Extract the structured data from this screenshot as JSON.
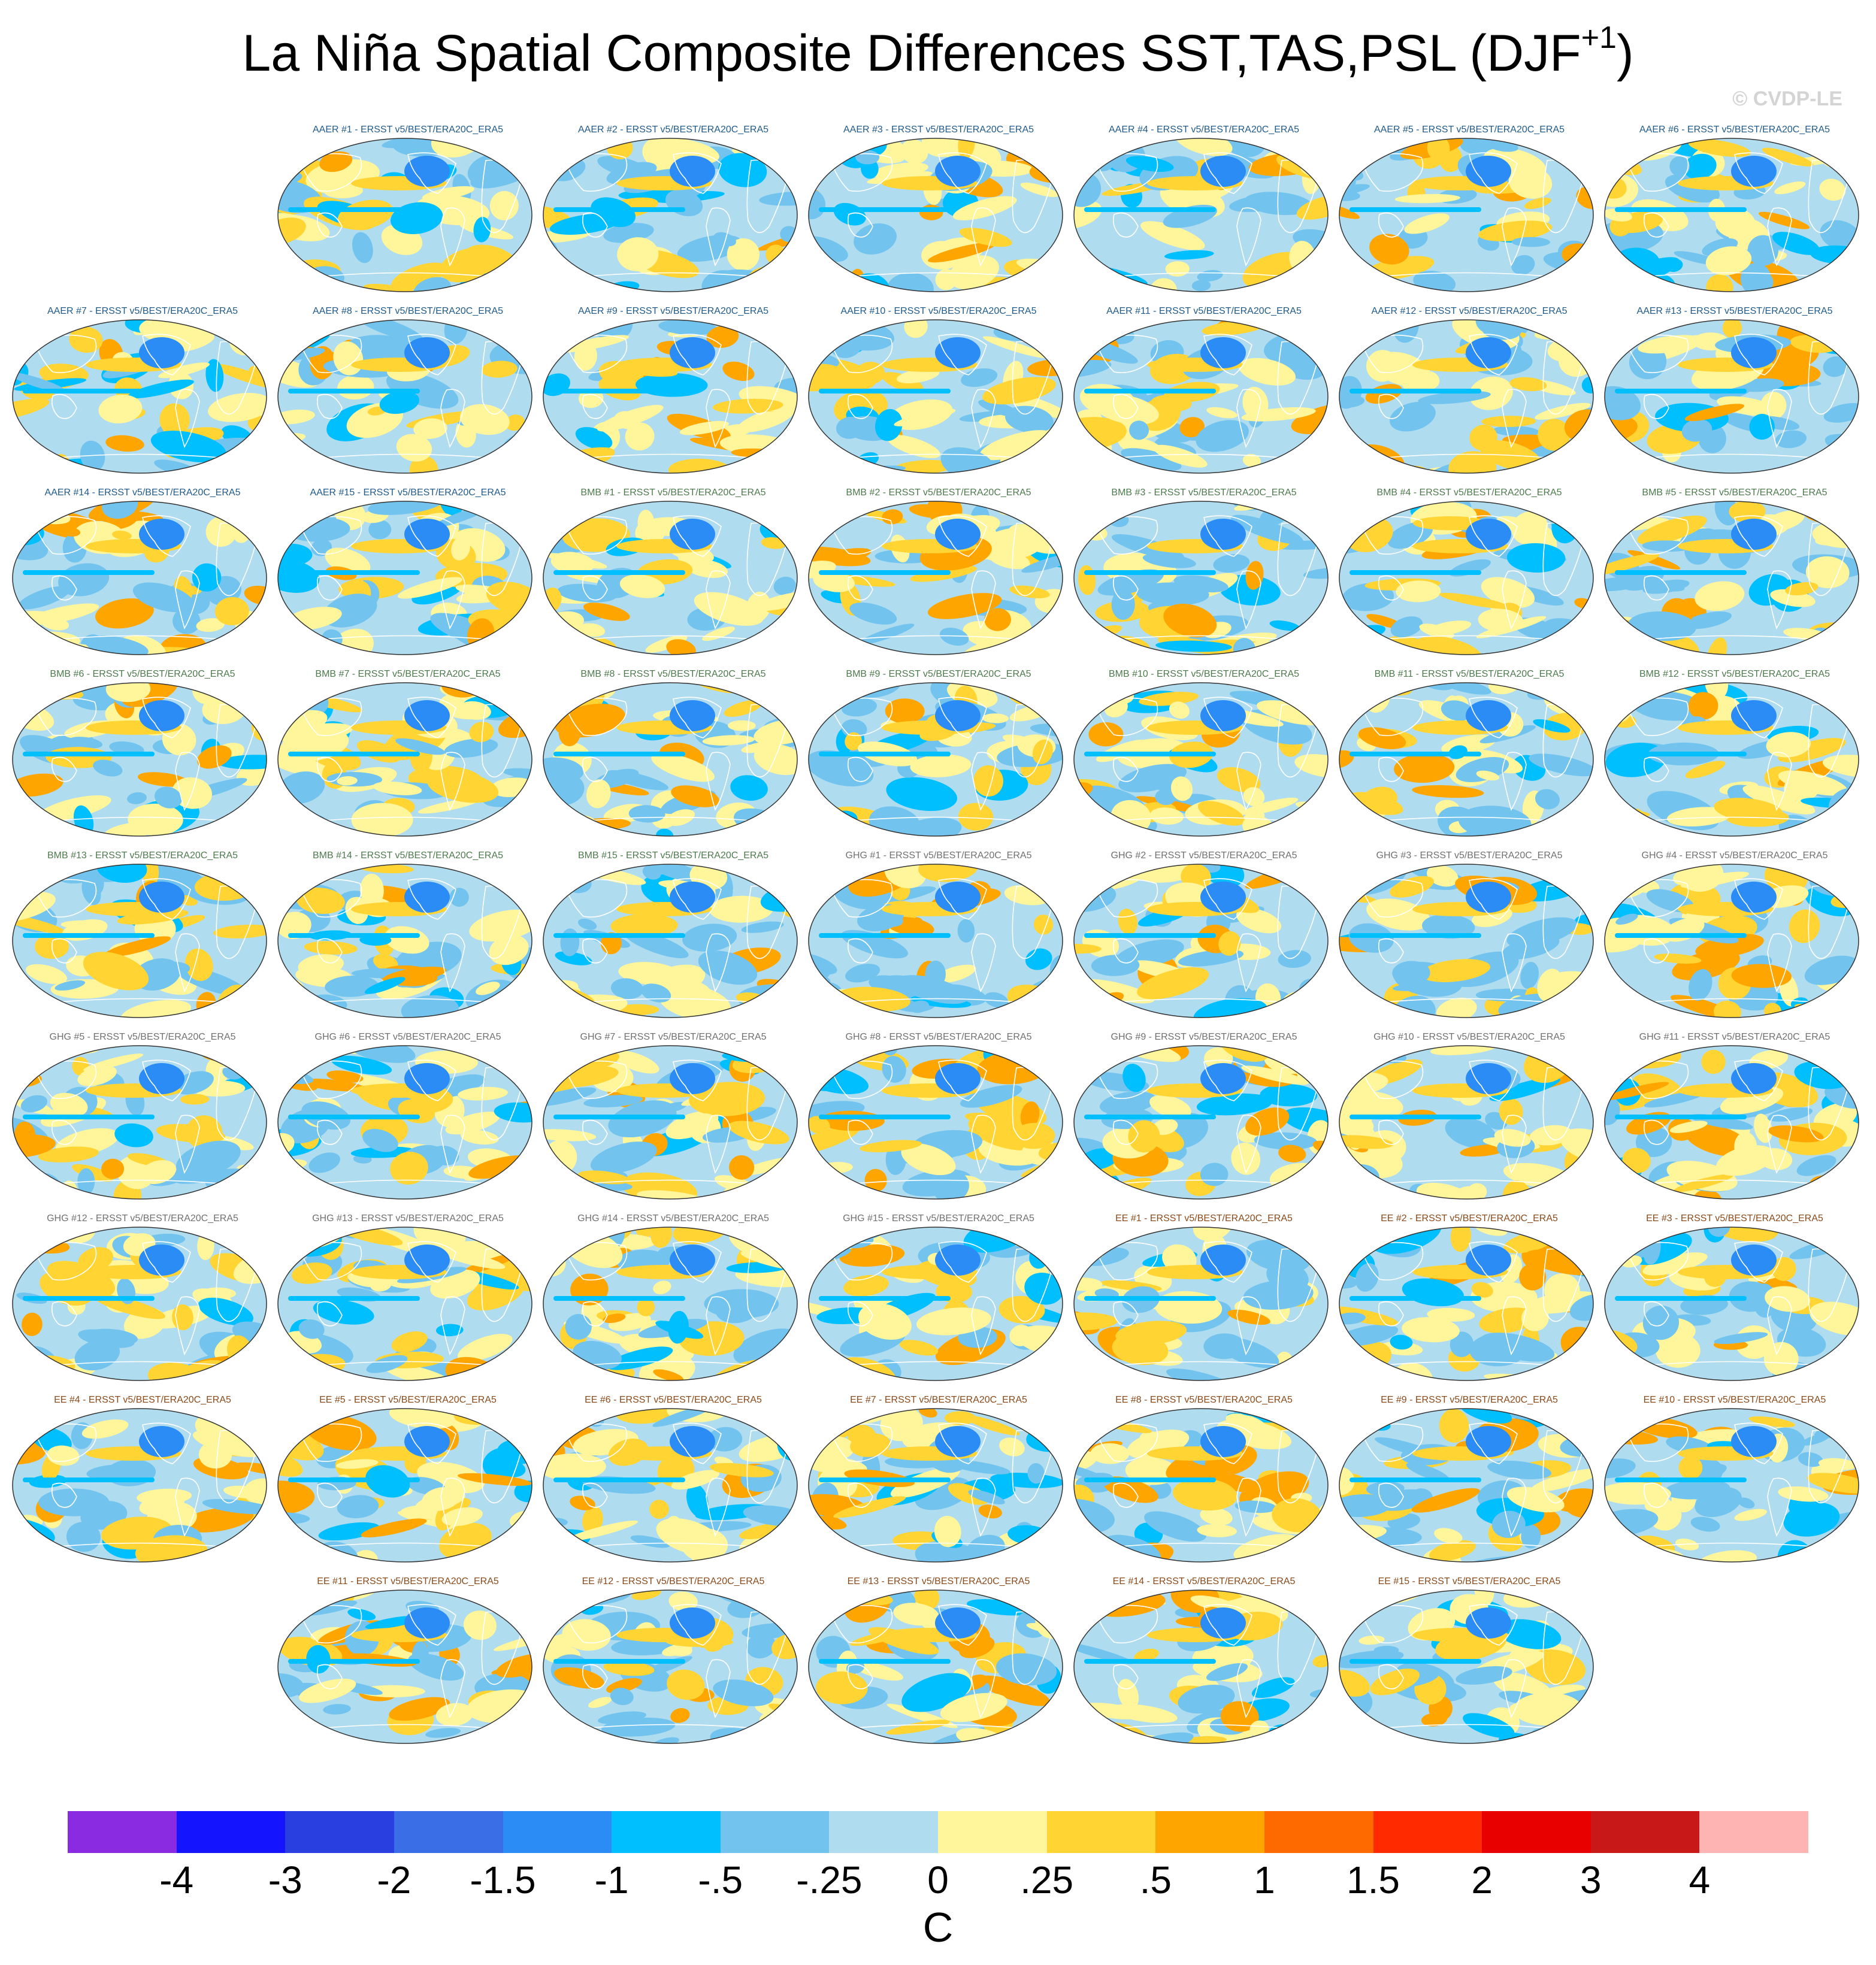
{
  "title": {
    "main": "La Niña Spatial Composite Differences SST,TAS,PSL (DJF",
    "superscript": "+1",
    "close": ")"
  },
  "watermark": "© CVDP-LE",
  "panels": [
    {
      "label": "AAER #1 - ERSST v5/BEST/ERA20C_ERA5",
      "group": "AAER"
    },
    {
      "label": "AAER #2 - ERSST v5/BEST/ERA20C_ERA5",
      "group": "AAER"
    },
    {
      "label": "AAER #3 - ERSST v5/BEST/ERA20C_ERA5",
      "group": "AAER"
    },
    {
      "label": "AAER #4 - ERSST v5/BEST/ERA20C_ERA5",
      "group": "AAER"
    },
    {
      "label": "AAER #5 - ERSST v5/BEST/ERA20C_ERA5",
      "group": "AAER"
    },
    {
      "label": "AAER #6 - ERSST v5/BEST/ERA20C_ERA5",
      "group": "AAER"
    },
    {
      "label": "AAER #7 - ERSST v5/BEST/ERA20C_ERA5",
      "group": "AAER"
    },
    {
      "label": "AAER #8 - ERSST v5/BEST/ERA20C_ERA5",
      "group": "AAER"
    },
    {
      "label": "AAER #9 - ERSST v5/BEST/ERA20C_ERA5",
      "group": "AAER"
    },
    {
      "label": "AAER #10 - ERSST v5/BEST/ERA20C_ERA5",
      "group": "AAER"
    },
    {
      "label": "AAER #11 - ERSST v5/BEST/ERA20C_ERA5",
      "group": "AAER"
    },
    {
      "label": "AAER #12 - ERSST v5/BEST/ERA20C_ERA5",
      "group": "AAER"
    },
    {
      "label": "AAER #13 - ERSST v5/BEST/ERA20C_ERA5",
      "group": "AAER"
    },
    {
      "label": "AAER #14 - ERSST v5/BEST/ERA20C_ERA5",
      "group": "AAER"
    },
    {
      "label": "AAER #15 - ERSST v5/BEST/ERA20C_ERA5",
      "group": "AAER"
    },
    {
      "label": "BMB #1 - ERSST v5/BEST/ERA20C_ERA5",
      "group": "BMB"
    },
    {
      "label": "BMB #2 - ERSST v5/BEST/ERA20C_ERA5",
      "group": "BMB"
    },
    {
      "label": "BMB #3 - ERSST v5/BEST/ERA20C_ERA5",
      "group": "BMB"
    },
    {
      "label": "BMB #4 - ERSST v5/BEST/ERA20C_ERA5",
      "group": "BMB"
    },
    {
      "label": "BMB #5 - ERSST v5/BEST/ERA20C_ERA5",
      "group": "BMB"
    },
    {
      "label": "BMB #6 - ERSST v5/BEST/ERA20C_ERA5",
      "group": "BMB"
    },
    {
      "label": "BMB #7 - ERSST v5/BEST/ERA20C_ERA5",
      "group": "BMB"
    },
    {
      "label": "BMB #8 - ERSST v5/BEST/ERA20C_ERA5",
      "group": "BMB"
    },
    {
      "label": "BMB #9 - ERSST v5/BEST/ERA20C_ERA5",
      "group": "BMB"
    },
    {
      "label": "BMB #10 - ERSST v5/BEST/ERA20C_ERA5",
      "group": "BMB"
    },
    {
      "label": "BMB #11 - ERSST v5/BEST/ERA20C_ERA5",
      "group": "BMB"
    },
    {
      "label": "BMB #12 - ERSST v5/BEST/ERA20C_ERA5",
      "group": "BMB"
    },
    {
      "label": "BMB #13 - ERSST v5/BEST/ERA20C_ERA5",
      "group": "BMB"
    },
    {
      "label": "BMB #14 - ERSST v5/BEST/ERA20C_ERA5",
      "group": "BMB"
    },
    {
      "label": "BMB #15 - ERSST v5/BEST/ERA20C_ERA5",
      "group": "BMB"
    },
    {
      "label": "GHG #1 - ERSST v5/BEST/ERA20C_ERA5",
      "group": "GHG"
    },
    {
      "label": "GHG #2 - ERSST v5/BEST/ERA20C_ERA5",
      "group": "GHG"
    },
    {
      "label": "GHG #3 - ERSST v5/BEST/ERA20C_ERA5",
      "group": "GHG"
    },
    {
      "label": "GHG #4 - ERSST v5/BEST/ERA20C_ERA5",
      "group": "GHG"
    },
    {
      "label": "GHG #5 - ERSST v5/BEST/ERA20C_ERA5",
      "group": "GHG"
    },
    {
      "label": "GHG #6 - ERSST v5/BEST/ERA20C_ERA5",
      "group": "GHG"
    },
    {
      "label": "GHG #7 - ERSST v5/BEST/ERA20C_ERA5",
      "group": "GHG"
    },
    {
      "label": "GHG #8 - ERSST v5/BEST/ERA20C_ERA5",
      "group": "GHG"
    },
    {
      "label": "GHG #9 - ERSST v5/BEST/ERA20C_ERA5",
      "group": "GHG"
    },
    {
      "label": "GHG #10 - ERSST v5/BEST/ERA20C_ERA5",
      "group": "GHG"
    },
    {
      "label": "GHG #11 - ERSST v5/BEST/ERA20C_ERA5",
      "group": "GHG"
    },
    {
      "label": "GHG #12 - ERSST v5/BEST/ERA20C_ERA5",
      "group": "GHG"
    },
    {
      "label": "GHG #13 - ERSST v5/BEST/ERA20C_ERA5",
      "group": "GHG"
    },
    {
      "label": "GHG #14 - ERSST v5/BEST/ERA20C_ERA5",
      "group": "GHG"
    },
    {
      "label": "GHG #15 - ERSST v5/BEST/ERA20C_ERA5",
      "group": "GHG"
    },
    {
      "label": "EE #1 - ERSST v5/BEST/ERA20C_ERA5",
      "group": "EE"
    },
    {
      "label": "EE #2 - ERSST v5/BEST/ERA20C_ERA5",
      "group": "EE"
    },
    {
      "label": "EE #3 - ERSST v5/BEST/ERA20C_ERA5",
      "group": "EE"
    },
    {
      "label": "EE #4 - ERSST v5/BEST/ERA20C_ERA5",
      "group": "EE"
    },
    {
      "label": "EE #5 - ERSST v5/BEST/ERA20C_ERA5",
      "group": "EE"
    },
    {
      "label": "EE #6 - ERSST v5/BEST/ERA20C_ERA5",
      "group": "EE"
    },
    {
      "label": "EE #7 - ERSST v5/BEST/ERA20C_ERA5",
      "group": "EE"
    },
    {
      "label": "EE #8 - ERSST v5/BEST/ERA20C_ERA5",
      "group": "EE"
    },
    {
      "label": "EE #9 - ERSST v5/BEST/ERA20C_ERA5",
      "group": "EE"
    },
    {
      "label": "EE #10 - ERSST v5/BEST/ERA20C_ERA5",
      "group": "EE"
    },
    {
      "label": "EE #11 - ERSST v5/BEST/ERA20C_ERA5",
      "group": "EE"
    },
    {
      "label": "EE #12 - ERSST v5/BEST/ERA20C_ERA5",
      "group": "EE"
    },
    {
      "label": "EE #13 - ERSST v5/BEST/ERA20C_ERA5",
      "group": "EE"
    },
    {
      "label": "EE #14 - ERSST v5/BEST/ERA20C_ERA5",
      "group": "EE"
    },
    {
      "label": "EE #15 - ERSST v5/BEST/ERA20C_ERA5",
      "group": "EE"
    }
  ],
  "label_colors": {
    "AAER": "#1f5a8a",
    "BMB": "#4d7a4d",
    "GHG": "#707070",
    "EE": "#8a4a1a"
  },
  "colorbar": {
    "colors": [
      "#8a2be2",
      "#1414ff",
      "#2a3fe0",
      "#3a6ee6",
      "#2b8cf6",
      "#00bfff",
      "#72c4ee",
      "#b0dcf0",
      "#fff59a",
      "#ffd433",
      "#ffa500",
      "#ff6a00",
      "#ff2a00",
      "#e80000",
      "#c81818",
      "#ffb4b4"
    ],
    "ticks": [
      "-4",
      "-3",
      "-2",
      "-1.5",
      "-1",
      "-.5",
      "-.25",
      "0",
      ".25",
      ".5",
      "1",
      "1.5",
      "2",
      "3",
      "4"
    ],
    "units": "C"
  }
}
